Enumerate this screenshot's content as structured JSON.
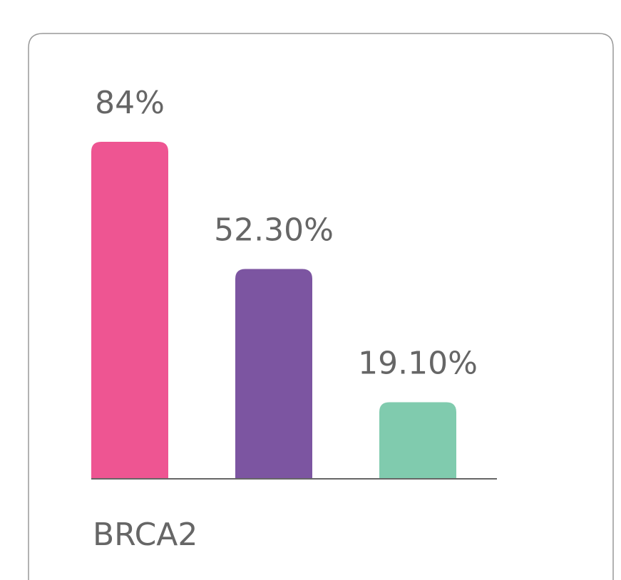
{
  "chart_data": {
    "type": "bar",
    "values": [
      84,
      52.3,
      19.1
    ],
    "value_labels": [
      "84%",
      "52.30%",
      "19.10%"
    ],
    "colors": [
      "#ee5592",
      "#7c55a1",
      "#80cbae"
    ],
    "xlabel": "BRCA2"
  }
}
